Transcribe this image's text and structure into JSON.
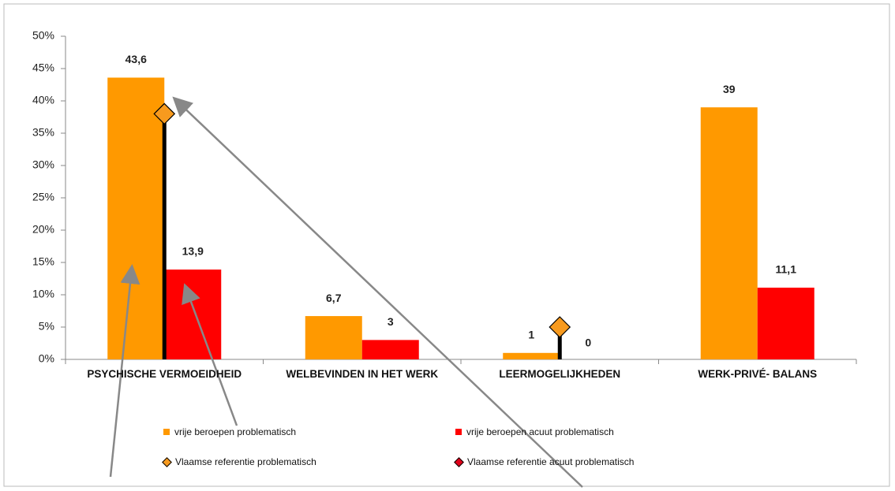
{
  "chart_data": {
    "type": "bar",
    "categories": [
      "PSYCHISCHE VERMOEIDHEID",
      "WELBEVINDEN IN HET WERK",
      "LEERMOGELIJKHEDEN",
      "WERK-PRIVÉ- BALANS"
    ],
    "series": [
      {
        "name": "vrije beroepen problematisch",
        "color": "#ff9900",
        "values": [
          43.6,
          6.7,
          1,
          39
        ],
        "value_labels": [
          "43,6",
          "6,7",
          "1",
          "39"
        ]
      },
      {
        "name": "vrije beroepen acuut problematisch",
        "color": "#ff0000",
        "values": [
          13.9,
          3,
          0,
          11.1
        ],
        "value_labels": [
          "13,9",
          "3",
          "0",
          "11,1"
        ]
      },
      {
        "name": "Vlaamse referentie problematisch",
        "color": "#f79a1e",
        "marker": "diamond",
        "values": [
          38,
          null,
          5,
          null
        ]
      },
      {
        "name": "Vlaamse referentie acuut problematisch",
        "color": "#e0001a",
        "marker": "diamond",
        "values": [
          null,
          null,
          null,
          null
        ]
      }
    ],
    "ylim": [
      0,
      50
    ],
    "yticks": [
      {
        "value": 0,
        "label": "0%"
      },
      {
        "value": 5,
        "label": "5%"
      },
      {
        "value": 10,
        "label": "10%"
      },
      {
        "value": 15,
        "label": "15%"
      },
      {
        "value": 20,
        "label": "20%"
      },
      {
        "value": 25,
        "label": "25%"
      },
      {
        "value": 30,
        "label": "30%"
      },
      {
        "value": 35,
        "label": "35%"
      },
      {
        "value": 40,
        "label": "40%"
      },
      {
        "value": 45,
        "label": "45%"
      },
      {
        "value": 50,
        "label": "50%"
      }
    ]
  }
}
